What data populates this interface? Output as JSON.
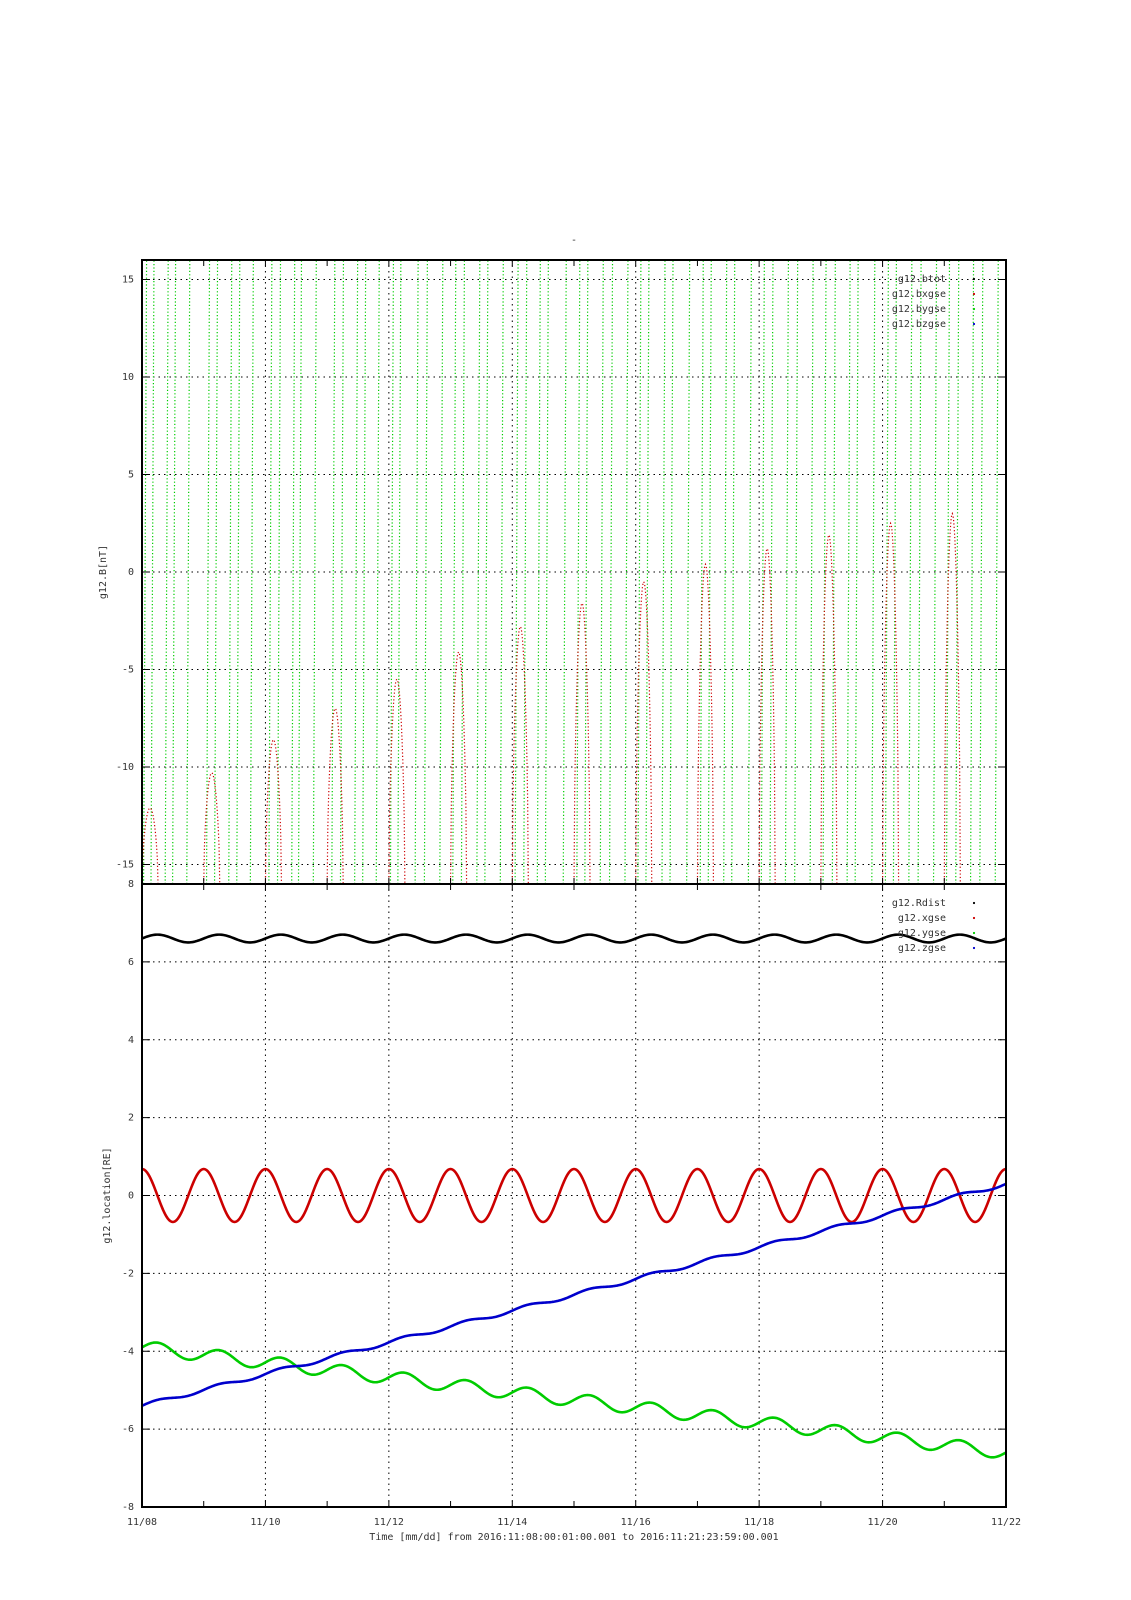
{
  "figure_title": "-",
  "footer": {
    "xlabel": "Time [mm/dd]  from 2016:11:08:00:01:00.001  to  2016:11:21:23:59:00.001"
  },
  "x_ticks": [
    "11/08",
    "11/10",
    "11/12",
    "11/14",
    "11/16",
    "11/18",
    "11/20",
    "11/22"
  ],
  "colors": {
    "black": "#000000",
    "red": "#cc0000",
    "green": "#00cc00",
    "blue": "#0000cc"
  },
  "chart_data": [
    {
      "type": "line",
      "ylabel": "g12.B[nT]",
      "ylim": [
        -16,
        16
      ],
      "y_ticks": [
        -15,
        -10,
        -5,
        0,
        5,
        10,
        15
      ],
      "x_range_days": [
        0,
        14
      ],
      "grid": true,
      "legend_position": "top-right",
      "legend": [
        {
          "name": "g12.btot",
          "color": "#000000"
        },
        {
          "name": "g12.bxgse",
          "color": "#cc0000"
        },
        {
          "name": "g12.bygse",
          "color": "#00cc00"
        },
        {
          "name": "g12.bzgse",
          "color": "#0000cc"
        }
      ],
      "series": [
        {
          "name": "g12.bxgse",
          "style": "dotted-peaks",
          "color": "#cc0000",
          "peak_days": [
            0.13,
            1.13,
            2.13,
            3.13,
            4.13,
            5.13,
            6.13,
            7.13,
            8.13,
            9.13,
            10.13,
            11.13,
            12.13,
            13.13
          ],
          "peak_values": [
            -12.1,
            -10.3,
            -8.6,
            -7.0,
            -5.5,
            -4.1,
            -2.8,
            -1.6,
            -0.5,
            0.4,
            1.2,
            1.9,
            2.5,
            3.0
          ]
        },
        {
          "name": "g12.bygse",
          "style": "dotted-vertical-crossings",
          "color": "#00cc00",
          "crossing_days": [
            0.05,
            0.17,
            0.4,
            0.52,
            0.75,
            1.07,
            1.2,
            1.43,
            1.56,
            1.78,
            2.08,
            2.22,
            2.45,
            2.56,
            2.8,
            3.1,
            3.24,
            3.47,
            3.6,
            3.82,
            4.05,
            4.17,
            4.45,
            4.6,
            4.85,
            5.06,
            5.2,
            5.45,
            5.58,
            5.83,
            6.07,
            6.21,
            6.43,
            6.56,
            6.85,
            7.07,
            7.2,
            7.45,
            7.6,
            7.85,
            8.06,
            8.19,
            8.45,
            8.58,
            8.85,
            9.07,
            9.2,
            9.45,
            9.58,
            9.85,
            10.06,
            10.2,
            10.45,
            10.6,
            10.85,
            11.06,
            11.21,
            11.45,
            11.58,
            11.85,
            12.07,
            12.2,
            12.45,
            12.6,
            12.85,
            13.06,
            13.21,
            13.45,
            13.6,
            13.85
          ]
        }
      ]
    },
    {
      "type": "line",
      "ylabel": "g12.location[RE]",
      "ylim": [
        -8,
        8
      ],
      "y_ticks": [
        -8,
        -6,
        -4,
        -2,
        0,
        2,
        4,
        6,
        8
      ],
      "x_range_days": [
        0,
        14
      ],
      "grid": true,
      "legend_position": "top-right",
      "legend": [
        {
          "name": "g12.Rdist",
          "color": "#000000"
        },
        {
          "name": "g12.xgse",
          "color": "#cc0000"
        },
        {
          "name": "g12.ygse",
          "color": "#00cc00"
        },
        {
          "name": "g12.zgse",
          "color": "#0000cc"
        }
      ],
      "series": [
        {
          "name": "g12.Rdist",
          "color": "#000000",
          "mean": 6.6,
          "amplitude": 0.1,
          "period_days": 1.0,
          "phase_days": 0.25
        },
        {
          "name": "g12.xgse",
          "color": "#cc0000",
          "mean": 0.0,
          "amplitude": 0.68,
          "period_days": 1.0,
          "phase_days": 0.0
        },
        {
          "name": "g12.ygse",
          "color": "#00cc00",
          "start": -3.9,
          "end": -6.6,
          "amplitude": 0.17,
          "period_days": 1.0
        },
        {
          "name": "g12.zgse",
          "color": "#0000cc",
          "start": -5.4,
          "end": 0.3,
          "amplitude": 0.05,
          "period_days": 1.0
        }
      ]
    }
  ]
}
